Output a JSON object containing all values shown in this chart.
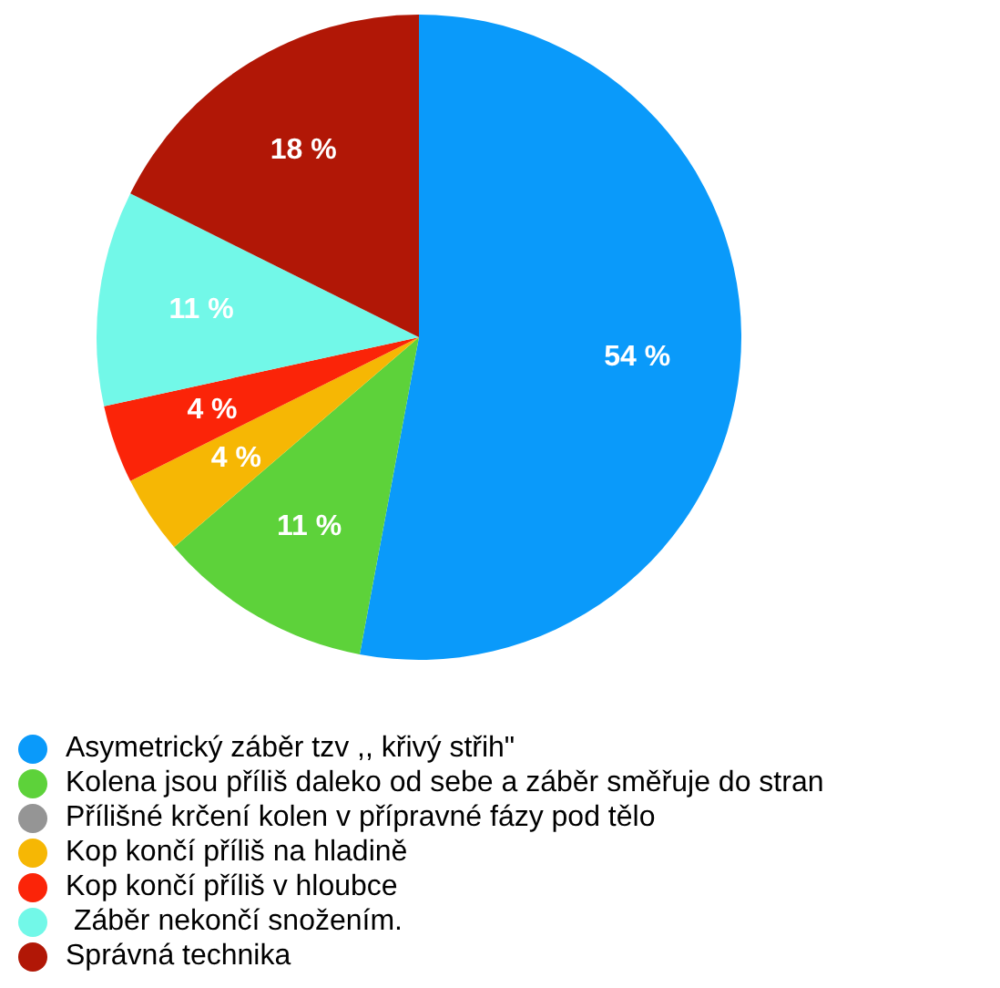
{
  "chart_data": {
    "type": "pie",
    "categories": [
      "Asymetrický záběr tzv ,, křivý střih\"",
      "Kolena jsou příliš daleko od sebe a záběr směřuje do stran",
      "Přílišné krčení kolen v přípravné fázy pod tělo",
      "Kop končí příliš na hladině",
      "Kop končí příliš v hloubce",
      " Záběr nekončí snožením.",
      "Správná technika"
    ],
    "values": [
      54,
      11,
      0,
      4,
      4,
      11,
      18
    ],
    "value_labels": [
      "54 %",
      "11 %",
      null,
      "4 %",
      "4 %",
      "11 %",
      "18 %"
    ],
    "colors": [
      "#0a9afa",
      "#5dd23a",
      "#959595",
      "#f6b704",
      "#fb2408",
      "#72f8e8",
      "#b11706"
    ],
    "legend": "bottom"
  }
}
